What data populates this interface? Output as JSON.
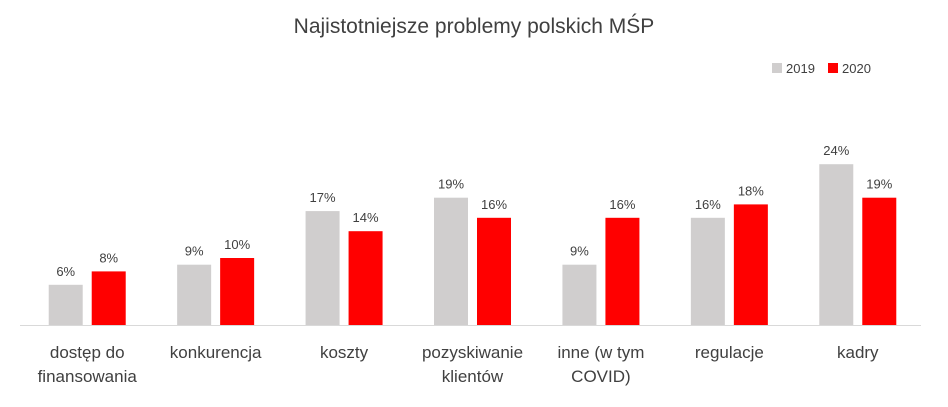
{
  "chart_data": {
    "type": "bar",
    "title": "Najistotniejsze problemy polskich MŚP",
    "xlabel": "",
    "ylabel": "",
    "ylim": [
      0,
      25
    ],
    "grid": false,
    "legend_position": "top-right",
    "categories": [
      [
        "dostęp do",
        "finansowania"
      ],
      [
        "konkurencja"
      ],
      [
        "koszty"
      ],
      [
        "pozyskiwanie",
        "klientów"
      ],
      [
        "inne (w tym",
        "COVID)"
      ],
      [
        "regulacje"
      ],
      [
        "kadry"
      ]
    ],
    "series": [
      {
        "name": "2019",
        "color": "#d0cece",
        "values": [
          6,
          9,
          17,
          19,
          9,
          16,
          24
        ],
        "labels": [
          "6%",
          "9%",
          "17%",
          "19%",
          "9%",
          "16%",
          "24%"
        ]
      },
      {
        "name": "2020",
        "color": "#ff0000",
        "values": [
          8,
          10,
          14,
          16,
          16,
          18,
          19
        ],
        "labels": [
          "8%",
          "10%",
          "14%",
          "16%",
          "16%",
          "18%",
          "19%"
        ]
      }
    ]
  }
}
